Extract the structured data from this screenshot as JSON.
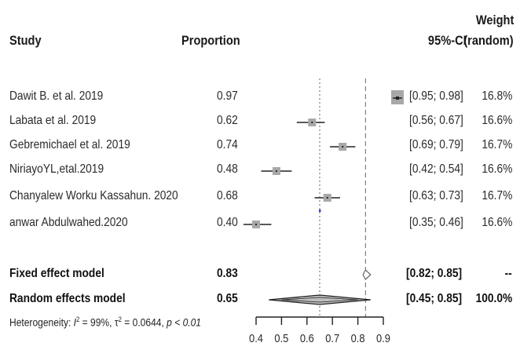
{
  "header": {
    "study": "Study",
    "proportion": "Proportion",
    "weight": "Weight",
    "ci": "95%-CI",
    "random": "(random)"
  },
  "chart_data": {
    "type": "forest",
    "xlim": [
      0.4,
      0.9
    ],
    "ticks": [
      0.4,
      0.5,
      0.6,
      0.7,
      0.8,
      0.9
    ],
    "tick_labels": [
      "0.4",
      "0.5",
      "0.6",
      "0.7",
      "0.8",
      "0.9"
    ],
    "reference_lines": {
      "random": 0.65,
      "fixed": 0.83
    },
    "studies": [
      {
        "study": "Dawit B. et al. 2019",
        "proportion": 0.97,
        "proportion_label": "0.97",
        "ci_low": 0.95,
        "ci_high": 0.98,
        "ci_label": "[0.95; 0.98]",
        "weight": "16.8%"
      },
      {
        "study": "Labata et al. 2019",
        "proportion": 0.62,
        "proportion_label": "0.62",
        "ci_low": 0.56,
        "ci_high": 0.67,
        "ci_label": "[0.56; 0.67]",
        "weight": "16.6%"
      },
      {
        "study": "Gebremichael et al. 2019",
        "proportion": 0.74,
        "proportion_label": "0.74",
        "ci_low": 0.69,
        "ci_high": 0.79,
        "ci_label": "[0.69; 0.79]",
        "weight": "16.7%"
      },
      {
        "study": "NiriayoYL,etal.2019",
        "proportion": 0.48,
        "proportion_label": "0.48",
        "ci_low": 0.42,
        "ci_high": 0.54,
        "ci_label": "[0.42; 0.54]",
        "weight": "16.6%"
      },
      {
        "study": "Chanyalew Worku Kassahun. 2020",
        "proportion": 0.68,
        "proportion_label": "0.68",
        "ci_low": 0.63,
        "ci_high": 0.73,
        "ci_label": "[0.63; 0.73]",
        "weight": "16.7%"
      },
      {
        "study": "anwar Abdulwahed.2020",
        "proportion": 0.4,
        "proportion_label": "0.40",
        "ci_low": 0.35,
        "ci_high": 0.46,
        "ci_label": "[0.35; 0.46]",
        "weight": "16.6%"
      }
    ],
    "fixed": {
      "label": "Fixed effect model",
      "proportion": 0.83,
      "proportion_label": "0.83",
      "ci_low": 0.82,
      "ci_high": 0.85,
      "ci_label": "[0.82; 0.85]",
      "weight": "--"
    },
    "random": {
      "label": "Random effects model",
      "proportion": 0.65,
      "proportion_label": "0.65",
      "ci_low": 0.45,
      "ci_high": 0.85,
      "ci_label": "[0.45; 0.85]",
      "weight": "100.0%"
    },
    "heterogeneity": {
      "prefix": "Heterogeneity: ",
      "i2_symbol": "I",
      "i2_sup": "2",
      "i2_value": " = 99%, ",
      "tau_symbol": "τ",
      "tau_sup": "2",
      "tau_value": " = 0.0644, ",
      "p_text": "p < 0.01"
    },
    "colors": {
      "box": "#a8a8a8",
      "line": "#222222",
      "diamond_fill": "#bdbdbd",
      "ref": "#666666",
      "marker_blue": "#2a3fcf"
    }
  }
}
